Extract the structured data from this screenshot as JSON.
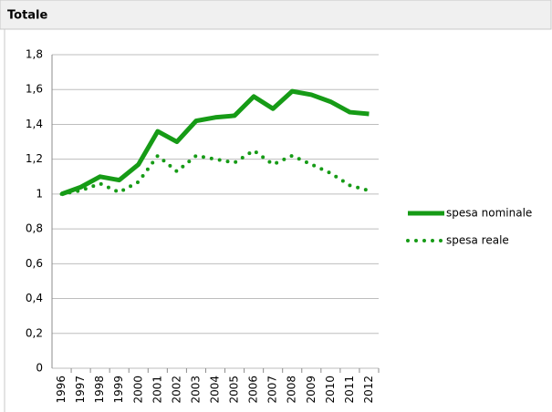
{
  "chart_data": {
    "type": "line",
    "title": "Totale",
    "categories": [
      "1996",
      "1997",
      "1998",
      "1999",
      "2000",
      "2001",
      "2002",
      "2003",
      "2004",
      "2005",
      "2006",
      "2007",
      "2008",
      "2009",
      "2010",
      "2011",
      "2012"
    ],
    "series": [
      {
        "name": "spesa nominale",
        "color": "#169b16",
        "style": "solid",
        "values": [
          1.0,
          1.04,
          1.1,
          1.08,
          1.17,
          1.36,
          1.3,
          1.42,
          1.44,
          1.45,
          1.56,
          1.49,
          1.59,
          1.57,
          1.53,
          1.47,
          1.46
        ]
      },
      {
        "name": "spesa reale",
        "color": "#169b16",
        "style": "dotted",
        "values": [
          1.0,
          1.02,
          1.06,
          1.01,
          1.07,
          1.22,
          1.13,
          1.22,
          1.2,
          1.18,
          1.25,
          1.17,
          1.22,
          1.17,
          1.12,
          1.05,
          1.02
        ]
      }
    ],
    "ylim": [
      0,
      1.8
    ],
    "yticks": [
      0,
      {
        "value": 0.2,
        "label": "0,2"
      },
      {
        "value": 0.4,
        "label": "0,4"
      },
      {
        "value": 0.6,
        "label": "0,6"
      },
      {
        "value": 0.8,
        "label": "0,8"
      },
      1,
      {
        "value": 1.2,
        "label": "1,2"
      },
      {
        "value": 1.4,
        "label": "1,4"
      },
      {
        "value": 1.6,
        "label": "1,6"
      },
      {
        "value": 1.8,
        "label": "1,8"
      }
    ],
    "grid": true,
    "legend": "right"
  }
}
